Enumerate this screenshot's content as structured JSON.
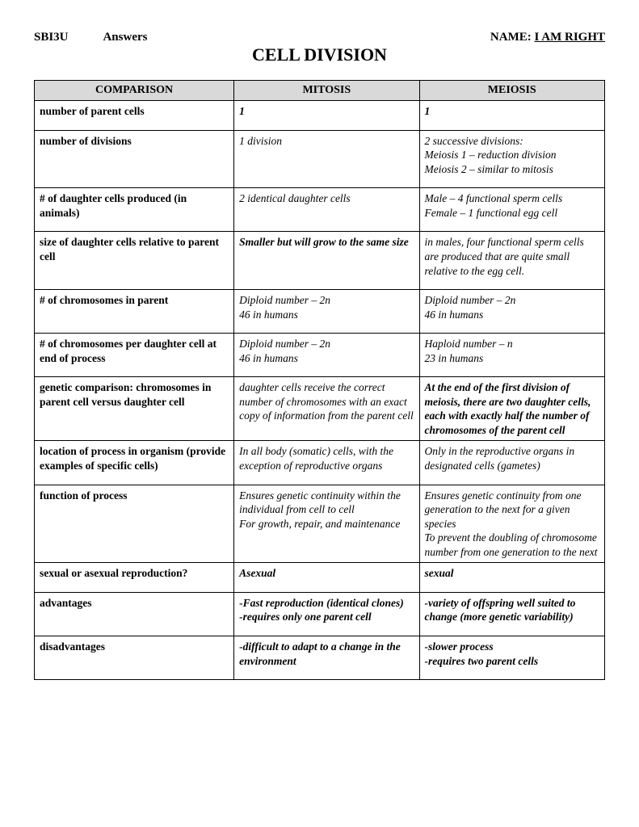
{
  "header": {
    "course": "SBI3U",
    "mode": "Answers",
    "name_label": "NAME: ",
    "name_value": "I AM RIGHT"
  },
  "title": "CELL DIVISION",
  "columns": {
    "c1": "COMPARISON",
    "c2": "MITOSIS",
    "c3": "MEIOSIS"
  },
  "rows": {
    "r1": {
      "label": "number of parent cells",
      "mitosis": "1",
      "meiosis": "1"
    },
    "r2": {
      "label": "number of divisions",
      "mitosis": "1 division",
      "meiosis": "2 successive divisions:\nMeiosis 1 – reduction division\nMeiosis 2 – similar to mitosis"
    },
    "r3": {
      "label": "# of daughter cells produced (in animals)",
      "mitosis": "2 identical daughter cells",
      "meiosis": "Male – 4 functional sperm cells\nFemale – 1 functional egg cell"
    },
    "r4": {
      "label": "size of daughter cells relative to parent cell",
      "mitosis": "Smaller but will grow to the same size",
      "meiosis": "in males, four functional sperm cells are produced that are quite small relative to the egg cell."
    },
    "r5": {
      "label": "# of chromosomes in parent",
      "mitosis": "Diploid number – 2n\n46 in humans",
      "meiosis": "Diploid number – 2n\n46 in humans"
    },
    "r6": {
      "label": "# of chromosomes per daughter cell at end of process",
      "mitosis": "Diploid number – 2n\n46 in humans",
      "meiosis": "Haploid number – n\n23 in humans"
    },
    "r7": {
      "label": "genetic comparison: chromosomes in parent cell versus daughter cell",
      "mitosis": "daughter cells receive the correct number of chromosomes with an exact copy of information from the parent cell",
      "meiosis": "At the end of the first division of meiosis, there are two daughter cells, each with exactly half the number of chromosomes of the parent cell"
    },
    "r8": {
      "label": "location of process in organism (provide examples of specific cells)",
      "mitosis": "In all body (somatic) cells, with the exception of reproductive organs",
      "meiosis": "Only in the reproductive organs in designated cells (gametes)"
    },
    "r9": {
      "label": "function of process",
      "mitosis": "Ensures genetic continuity within the individual from cell to cell\nFor growth, repair, and maintenance",
      "meiosis": "Ensures genetic continuity from one generation to the next for a given species\nTo prevent the doubling of chromosome number from one generation to the next"
    },
    "r10": {
      "label": "sexual or asexual reproduction?",
      "mitosis": "Asexual",
      "meiosis": "sexual"
    },
    "r11": {
      "label": "advantages",
      "mitosis": "-Fast reproduction (identical clones)\n-requires only one parent cell",
      "meiosis": "-variety of offspring well suited to change (more genetic variability)"
    },
    "r12": {
      "label": "disadvantages",
      "mitosis": "-difficult to adapt to a change in the environment",
      "meiosis": "-slower process\n-requires two parent cells"
    }
  },
  "styling": {
    "header_bg": "#d9d9d9",
    "border_color": "#000000",
    "page_bg": "#ffffff",
    "font_family": "Times New Roman",
    "title_fontsize": 22,
    "body_fontsize": 13.5,
    "bold_answer_rows": [
      "r1",
      "r4",
      "r7",
      "r10",
      "r11",
      "r12"
    ],
    "bold_meiosis_only_rows": [
      "r7",
      "r10",
      "r11",
      "r12"
    ]
  }
}
